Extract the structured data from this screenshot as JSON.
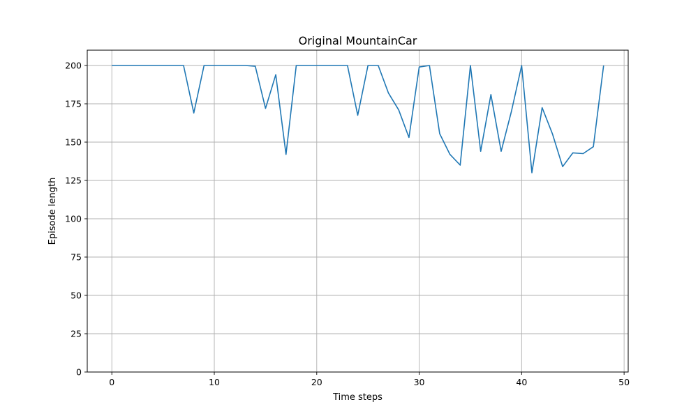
{
  "chart_data": {
    "type": "line",
    "title": "Original MountainCar",
    "xlabel": "Time steps",
    "ylabel": "Episode length",
    "xlim": [
      -2.4,
      50.4
    ],
    "ylim": [
      0,
      210
    ],
    "xticks": [
      0,
      10,
      20,
      30,
      40,
      50
    ],
    "yticks": [
      0,
      25,
      50,
      75,
      100,
      125,
      150,
      175,
      200
    ],
    "grid": true,
    "line_color": "#1f77b4",
    "series": [
      {
        "x": [
          0,
          1,
          2,
          3,
          4,
          5,
          6,
          7,
          8,
          9,
          10,
          11,
          12,
          13,
          14,
          15,
          16,
          17,
          18,
          19,
          20,
          21,
          22,
          23,
          24,
          25,
          26,
          27,
          28,
          29,
          30,
          31,
          32,
          33,
          34,
          35,
          36,
          37,
          38,
          39,
          40,
          41,
          42,
          43,
          44,
          45,
          46,
          47,
          48
        ],
        "values": [
          200,
          200,
          200,
          200,
          200,
          200,
          200,
          200,
          169,
          200,
          200,
          200,
          200,
          200,
          199.5,
          172,
          194,
          142,
          200,
          200,
          200,
          200,
          200,
          200,
          167.5,
          200,
          200,
          182,
          171,
          153,
          199,
          200,
          155.5,
          142,
          135,
          200,
          144,
          181,
          144,
          170,
          200,
          130,
          172.5,
          155.5,
          134,
          143,
          142.5,
          147,
          200
        ]
      }
    ]
  }
}
